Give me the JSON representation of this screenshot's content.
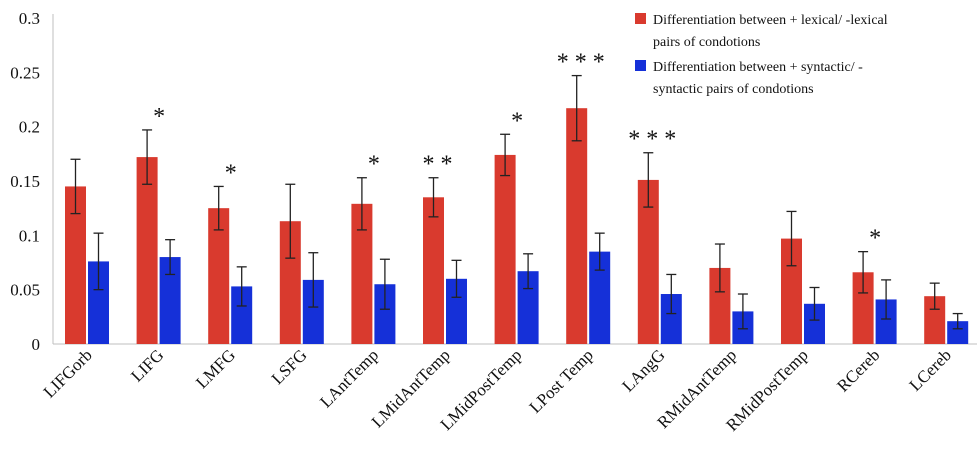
{
  "chart_data": {
    "type": "bar",
    "categories": [
      "LIFGorb",
      "LIFG",
      "LMFG",
      "LSFG",
      "LAntTemp",
      "LMidAntTemp",
      "LMidPostTemp",
      "LPost Temp",
      "LAngG",
      "RMidAntTemp",
      "RMidPostTemp",
      "RCereb",
      "LCereb"
    ],
    "series": [
      {
        "name": "Differentiation between + lexical/ -lexical pairs of condotions",
        "legend_lines": [
          "Differentiation between + lexical/ -lexical",
          "pairs of condotions"
        ],
        "color": "#d93a2e",
        "values": [
          0.145,
          0.172,
          0.125,
          0.113,
          0.129,
          0.135,
          0.174,
          0.217,
          0.151,
          0.07,
          0.097,
          0.066,
          0.044
        ],
        "errors": [
          0.025,
          0.025,
          0.02,
          0.034,
          0.024,
          0.018,
          0.019,
          0.03,
          0.025,
          0.022,
          0.025,
          0.019,
          0.012
        ]
      },
      {
        "name": "Differentiation between + syntactic/ -syntactic pairs of condotions",
        "legend_lines": [
          "Differentiation between + syntactic/ -",
          "syntactic pairs of condotions"
        ],
        "color": "#1530d8",
        "values": [
          0.076,
          0.08,
          0.053,
          0.059,
          0.055,
          0.06,
          0.067,
          0.085,
          0.046,
          0.03,
          0.037,
          0.041,
          0.021
        ],
        "errors": [
          0.026,
          0.016,
          0.018,
          0.025,
          0.023,
          0.017,
          0.016,
          0.017,
          0.018,
          0.016,
          0.015,
          0.018,
          0.007
        ]
      }
    ],
    "significance": [
      "",
      "*",
      "*",
      "",
      "*",
      "* *",
      "*",
      "* * *",
      "* * *",
      "",
      "",
      "*",
      ""
    ],
    "yticks": [
      "0",
      "0.05",
      "0.1",
      "0.15",
      "0.2",
      "0.25",
      "0.3"
    ],
    "ylim": [
      0,
      0.3
    ],
    "grid": false,
    "legend_position": "top-right",
    "title": "",
    "xlabel": "",
    "ylabel": ""
  }
}
